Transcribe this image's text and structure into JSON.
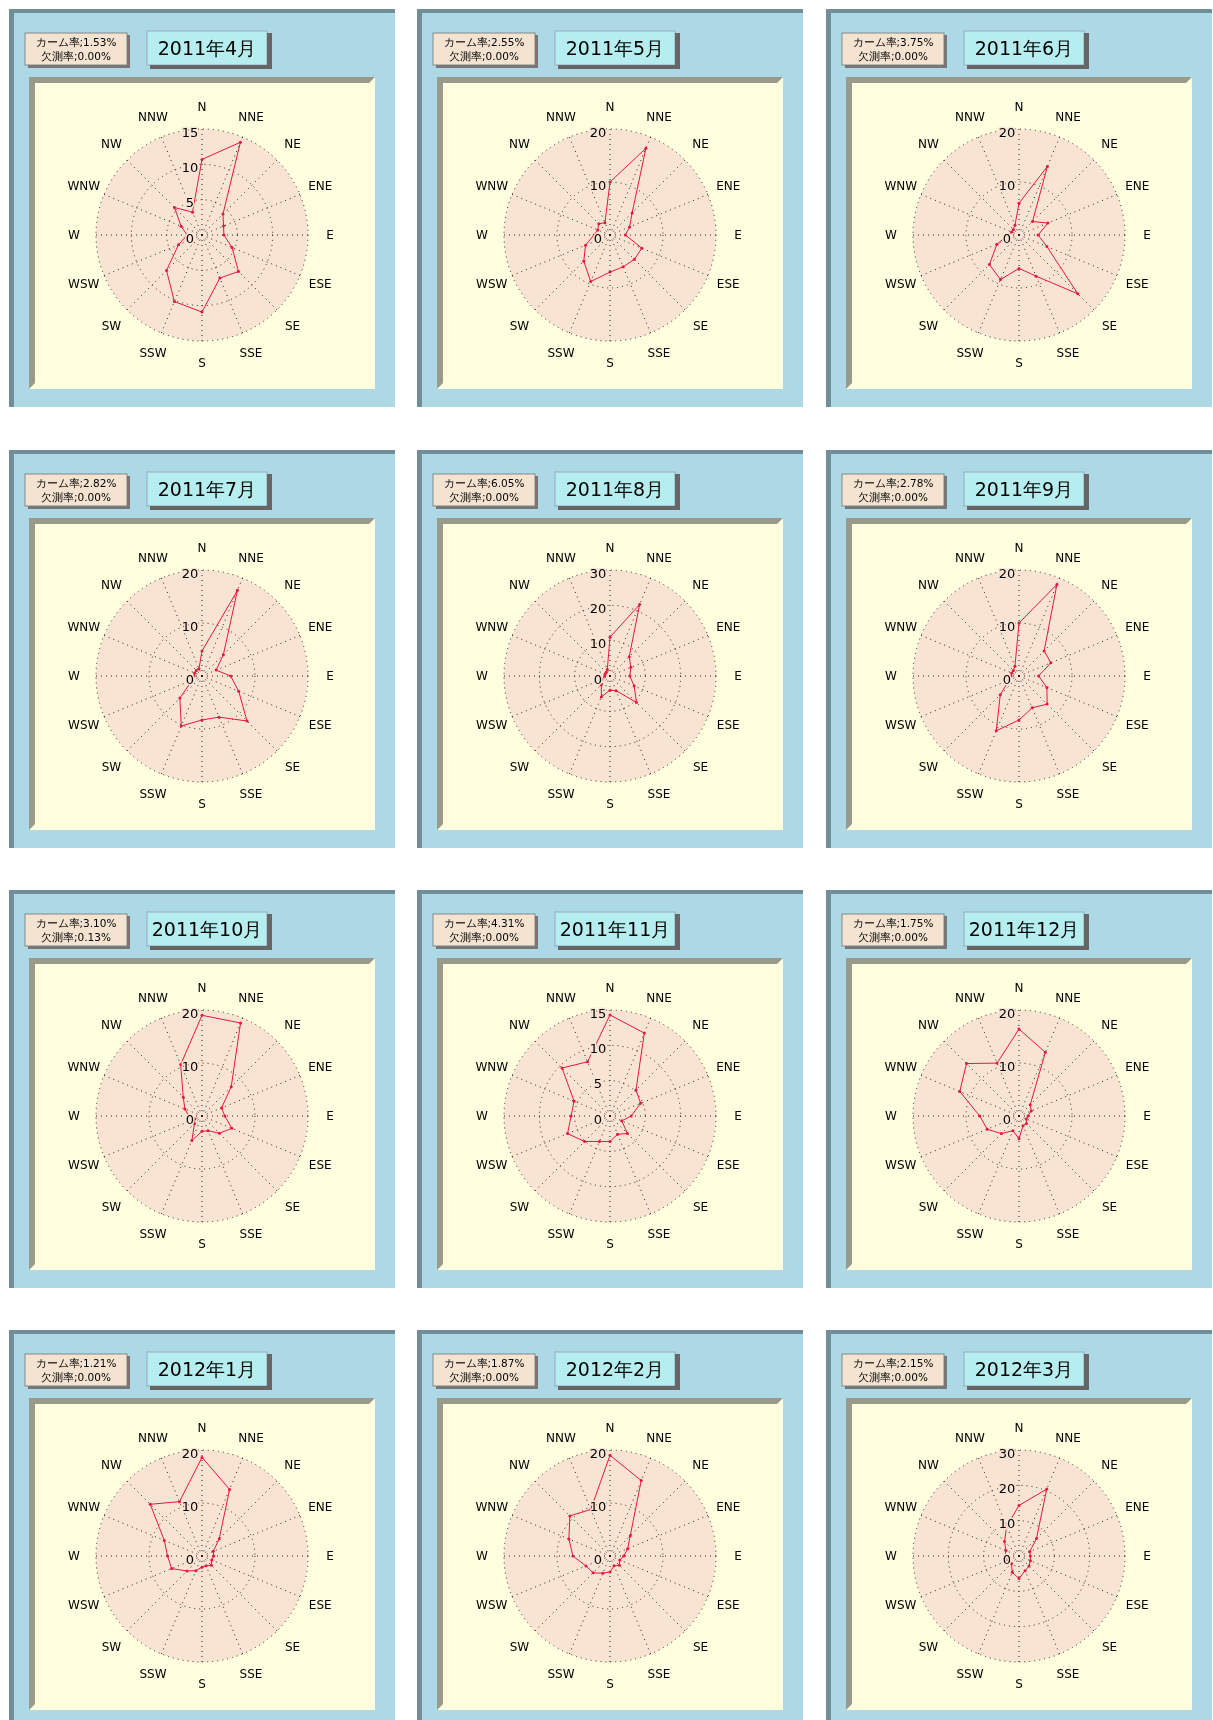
{
  "chart_data": [
    {
      "type": "radar",
      "title": "2011年4月",
      "annotations": [
        "カーム率;1.53%",
        "欠測率;0.00%"
      ],
      "categories": [
        "N",
        "NNE",
        "NE",
        "ENE",
        "E",
        "ESE",
        "SE",
        "SSE",
        "S",
        "SSW",
        "SW",
        "WSW",
        "W",
        "WNW",
        "NW",
        "NNW"
      ],
      "series": [
        {
          "color": "#e8173c",
          "values": [
            10.7,
            14.2,
            4.2,
            3.3,
            3.1,
            4.6,
            7.3,
            6.6,
            10.9,
            10.2,
            7.1,
            3.6,
            2.1,
            3.2,
            5.5,
            3.5
          ]
        }
      ],
      "ylim": [
        0,
        15
      ],
      "yticks": [
        0,
        5,
        10,
        15
      ],
      "grid": true,
      "marker": "circle"
    },
    {
      "type": "radar",
      "title": "2011年5月",
      "annotations": [
        "カーム率;2.55%",
        "欠測率;0.00%"
      ],
      "categories": [
        "N",
        "NNE",
        "NE",
        "ENE",
        "E",
        "ESE",
        "SE",
        "SSE",
        "S",
        "SSW",
        "SW",
        "WSW",
        "W",
        "WNW",
        "NW",
        "NNW"
      ],
      "series": [
        {
          "color": "#e8173c",
          "values": [
            10,
            17.7,
            5.9,
            4,
            2.9,
            6.5,
            6.5,
            6.5,
            7,
            9.5,
            7,
            5,
            3,
            2.5,
            3,
            2.5
          ]
        }
      ],
      "ylim": [
        0,
        20
      ],
      "yticks": [
        0,
        10,
        20
      ],
      "grid": true,
      "marker": "circle"
    },
    {
      "type": "radar",
      "title": "2011年6月",
      "annotations": [
        "カーム率;3.75%",
        "欠測率;0.00%"
      ],
      "categories": [
        "N",
        "NNE",
        "NE",
        "ENE",
        "E",
        "ESE",
        "SE",
        "SSE",
        "S",
        "SSW",
        "SW",
        "WSW",
        "W",
        "WNW",
        "NW",
        "NNW"
      ],
      "series": [
        {
          "color": "#e8173c",
          "values": [
            6,
            14,
            3.6,
            5.9,
            3.6,
            5.7,
            15.7,
            8.4,
            6.3,
            9.1,
            7.9,
            4.5,
            2,
            1.5,
            1.5,
            2
          ]
        }
      ],
      "ylim": [
        0,
        20
      ],
      "yticks": [
        0,
        10,
        20
      ],
      "grid": true,
      "marker": "circle"
    },
    {
      "type": "radar",
      "title": "2011年7月",
      "annotations": [
        "カーム率;2.82%",
        "欠測率;0.00%"
      ],
      "categories": [
        "N",
        "NNE",
        "NE",
        "ENE",
        "E",
        "ESE",
        "SE",
        "SSE",
        "S",
        "SSW",
        "SW",
        "WSW",
        "W",
        "WNW",
        "NW",
        "NNW"
      ],
      "series": [
        {
          "color": "#e8173c",
          "values": [
            4.7,
            17.5,
            5.7,
            2.9,
            5.4,
            7.5,
            12,
            8.4,
            8.3,
            10.2,
            5.9,
            2,
            1.5,
            1.5,
            1.5,
            1.5
          ]
        }
      ],
      "ylim": [
        0,
        20
      ],
      "yticks": [
        0,
        10,
        20
      ],
      "grid": true,
      "marker": "circle"
    },
    {
      "type": "radar",
      "title": "2011年8月",
      "annotations": [
        "カーム率;6.05%",
        "欠測率;0.00%"
      ],
      "categories": [
        "N",
        "NNE",
        "NE",
        "ENE",
        "E",
        "ESE",
        "SE",
        "SSE",
        "S",
        "SSW",
        "SW",
        "WSW",
        "W",
        "WNW",
        "NW",
        "NNW"
      ],
      "series": [
        {
          "color": "#e8173c",
          "values": [
            11,
            21.9,
            7.7,
            6.4,
            5.6,
            7.4,
            10.6,
            4.5,
            4,
            6.4,
            3.5,
            2.5,
            1.5,
            1.5,
            1.5,
            2
          ]
        }
      ],
      "ylim": [
        0,
        30
      ],
      "yticks": [
        0,
        10,
        20,
        30
      ],
      "grid": true,
      "marker": "circle"
    },
    {
      "type": "radar",
      "title": "2011年9月",
      "annotations": [
        "カーム率;2.78%",
        "欠測率;0.00%"
      ],
      "categories": [
        "N",
        "NNE",
        "NE",
        "ENE",
        "E",
        "ESE",
        "SE",
        "SSE",
        "S",
        "SSW",
        "SW",
        "WSW",
        "W",
        "WNW",
        "NW",
        "NNW"
      ],
      "series": [
        {
          "color": "#e8173c",
          "values": [
            10,
            18.7,
            6.7,
            6.5,
            3.7,
            5.7,
            7.5,
            6.5,
            8.3,
            11.2,
            5,
            2,
            1.5,
            1.5,
            1.5,
            2
          ]
        }
      ],
      "ylim": [
        0,
        20
      ],
      "yticks": [
        0,
        10,
        20
      ],
      "grid": true,
      "marker": "circle"
    },
    {
      "type": "radar",
      "title": "2011年10月",
      "annotations": [
        "カーム率;3.10%",
        "欠測率;0.13%"
      ],
      "categories": [
        "N",
        "NNE",
        "NE",
        "ENE",
        "E",
        "ESE",
        "SE",
        "SSE",
        "S",
        "SSW",
        "SW",
        "WSW",
        "W",
        "WNW",
        "NW",
        "NNW"
      ],
      "series": [
        {
          "color": "#e8173c",
          "values": [
            19,
            19,
            7.8,
            4,
            4.3,
            6.1,
            4.6,
            3,
            2.9,
            5,
            2,
            1.5,
            2.5,
            3.5,
            5,
            10.5
          ]
        }
      ],
      "ylim": [
        0,
        20
      ],
      "yticks": [
        0,
        10,
        20
      ],
      "grid": true,
      "marker": "circle"
    },
    {
      "type": "radar",
      "title": "2011年11月",
      "annotations": [
        "カーム率;4.31%",
        "欠測率;0.00%"
      ],
      "categories": [
        "N",
        "NNE",
        "NE",
        "ENE",
        "E",
        "ESE",
        "SE",
        "SSE",
        "S",
        "SSW",
        "SW",
        "WSW",
        "W",
        "WNW",
        "NW",
        "NNW"
      ],
      "series": [
        {
          "color": "#e8173c",
          "values": [
            14.3,
            12.7,
            5.2,
            4.7,
            3,
            1.8,
            3.5,
            2.8,
            3.6,
            3.9,
            5.1,
            6.5,
            5.5,
            5.5,
            9.6,
            8.3
          ]
        }
      ],
      "ylim": [
        0,
        15
      ],
      "yticks": [
        0,
        5,
        10,
        15
      ],
      "grid": true,
      "marker": "circle"
    },
    {
      "type": "radar",
      "title": "2011年12月",
      "annotations": [
        "カーム率;1.75%",
        "欠測率;0.00%"
      ],
      "categories": [
        "N",
        "NNE",
        "NE",
        "ENE",
        "E",
        "ESE",
        "SE",
        "SSE",
        "S",
        "SSW",
        "SW",
        "WSW",
        "W",
        "WNW",
        "NW",
        "NNW"
      ],
      "series": [
        {
          "color": "#e8173c",
          "values": [
            16.4,
            13,
            3,
            2.5,
            1.7,
            1.5,
            2,
            2,
            4.3,
            3,
            4.7,
            6.5,
            7.4,
            12.1,
            14,
            10.8
          ]
        }
      ],
      "ylim": [
        0,
        20
      ],
      "yticks": [
        0,
        10,
        20
      ],
      "grid": true,
      "marker": "circle"
    },
    {
      "type": "radar",
      "title": "2012年1月",
      "annotations": [
        "カーム率;1.21%",
        "欠測率;0.00%"
      ],
      "categories": [
        "N",
        "NNE",
        "NE",
        "ENE",
        "E",
        "ESE",
        "SE",
        "SSE",
        "S",
        "SSW",
        "SW",
        "WSW",
        "W",
        "WNW",
        "NW",
        "NNW"
      ],
      "series": [
        {
          "color": "#e8173c",
          "values": [
            18.6,
            13.6,
            4.6,
            2.3,
            2.2,
            2,
            2.5,
            2,
            2.1,
            3,
            4,
            6.2,
            6.5,
            7.7,
            13.8,
            11.1
          ]
        }
      ],
      "ylim": [
        0,
        20
      ],
      "yticks": [
        0,
        10,
        20
      ],
      "grid": true,
      "marker": "circle"
    },
    {
      "type": "radar",
      "title": "2012年2月",
      "annotations": [
        "カーム率;1.87%",
        "欠測率;0.00%"
      ],
      "categories": [
        "N",
        "NNE",
        "NE",
        "ENE",
        "E",
        "ESE",
        "SE",
        "SSE",
        "S",
        "SSW",
        "SW",
        "WSW",
        "W",
        "WNW",
        "NW",
        "NNW"
      ],
      "series": [
        {
          "color": "#e8173c",
          "values": [
            19,
            15.4,
            5.4,
            3.6,
            2.6,
            2,
            2.5,
            2,
            3,
            3.5,
            4.5,
            4.9,
            7,
            8.4,
            10.7,
            9.5
          ]
        }
      ],
      "ylim": [
        0,
        20
      ],
      "yticks": [
        0,
        10,
        20
      ],
      "grid": true,
      "marker": "circle"
    },
    {
      "type": "radar",
      "title": "2012年3月",
      "annotations": [
        "カーム率;2.15%",
        "欠測率;0.00%"
      ],
      "categories": [
        "N",
        "NNE",
        "NE",
        "ENE",
        "E",
        "ESE",
        "SE",
        "SSE",
        "S",
        "SSW",
        "SW",
        "WSW",
        "W",
        "WNW",
        "NW",
        "NNW"
      ],
      "series": [
        {
          "color": "#e8173c",
          "values": [
            14.3,
            20.5,
            7,
            3.3,
            3.2,
            3.5,
            4,
            4.5,
            6.4,
            5,
            3,
            3.5,
            3.9,
            4,
            5.8,
            9.1
          ]
        }
      ],
      "ylim": [
        0,
        30
      ],
      "yticks": [
        0,
        10,
        20,
        30
      ],
      "grid": true,
      "marker": "circle"
    }
  ]
}
